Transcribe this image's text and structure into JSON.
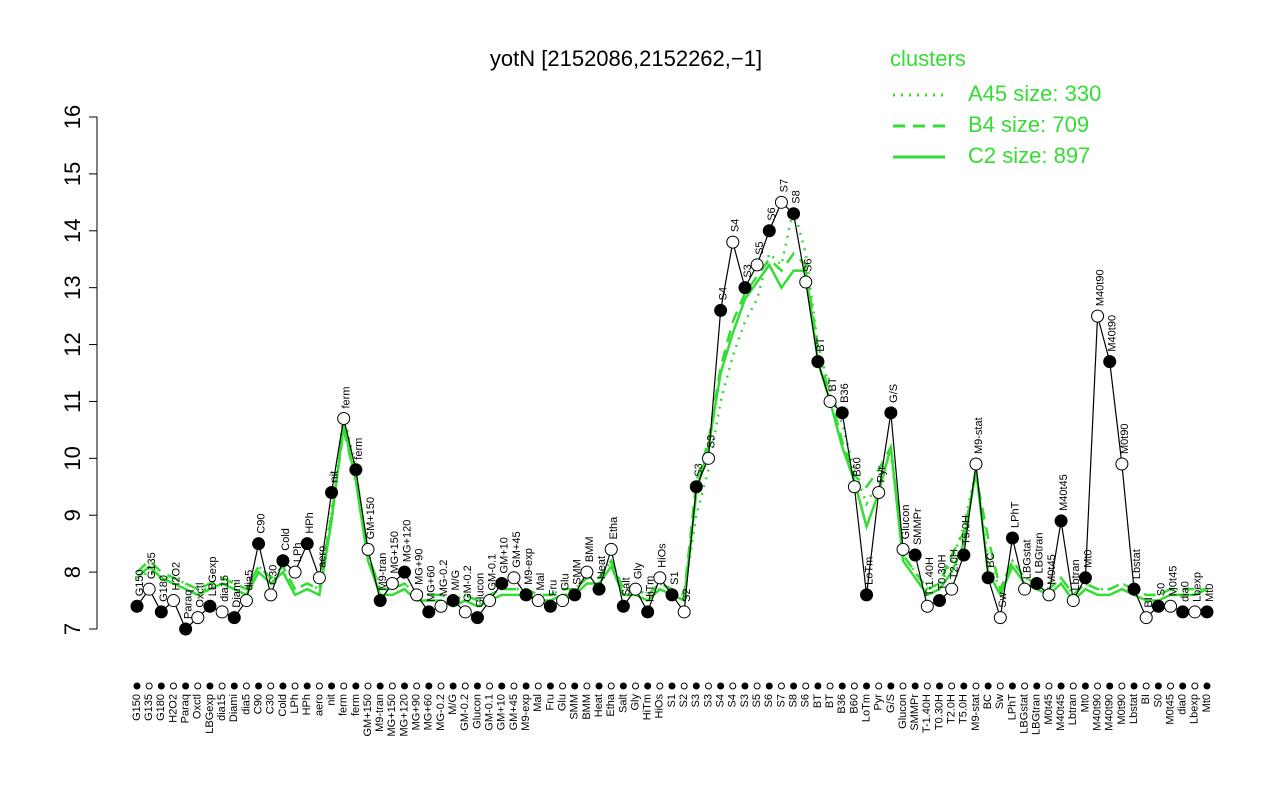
{
  "chart_data": {
    "type": "line",
    "title": "yotN [2152086,2152262,−1]",
    "legend_title": "clusters",
    "legend": "top-right",
    "categories": [
      "G150",
      "G135",
      "G180",
      "H2O2",
      "Paraq",
      "Oxctl",
      "LBGexp",
      "dia15",
      "Diami",
      "dia5",
      "C90",
      "C30",
      "Cold",
      "LPh",
      "HPh",
      "aero",
      "nit",
      "ferm",
      "ferm",
      "GM+150",
      "M9-tran",
      "MG+150",
      "MG+120",
      "MG+90",
      "MG+60",
      "MG-0.2",
      "M/G",
      "GM-0.2",
      "Glucon",
      "GM-0.1",
      "GM+10",
      "GM+45",
      "M9-exp",
      "Mal",
      "Fru",
      "Glu",
      "SMM",
      "BMM",
      "Heat",
      "Etha",
      "Salt",
      "Gly",
      "HiTm",
      "HiOs",
      "S1",
      "S2",
      "S3",
      "S3",
      "S4",
      "S4",
      "S3",
      "S5",
      "S6",
      "S7",
      "S8",
      "S6",
      "BT",
      "BT",
      "B36",
      "B60",
      "LoTm",
      "Pyr",
      "G/S",
      "Glucon",
      "SMMPr",
      "T-1.40H",
      "T0.30H",
      "T2.0H",
      "T5.0H",
      "M9-stat",
      "BC",
      "Sw",
      "LPhT",
      "LBGstat",
      "LBGtran",
      "M0t45",
      "M40t45",
      "Lbtran",
      "Mt0",
      "M40t90",
      "M40t90",
      "M0t90",
      "Lbstat",
      "BI",
      "S0",
      "M0t45",
      "dia0",
      "Lbexp",
      "Mt0"
    ],
    "values": [
      7.4,
      7.7,
      7.3,
      7.5,
      7.0,
      7.2,
      7.4,
      7.3,
      7.2,
      7.5,
      8.5,
      7.6,
      8.2,
      8.0,
      8.5,
      7.9,
      9.4,
      10.7,
      9.8,
      8.4,
      7.5,
      7.8,
      8.0,
      7.6,
      7.3,
      7.4,
      7.5,
      7.3,
      7.2,
      7.5,
      7.8,
      7.9,
      7.6,
      7.5,
      7.4,
      7.5,
      7.6,
      8.0,
      7.7,
      8.4,
      7.4,
      7.7,
      7.3,
      7.9,
      7.6,
      7.3,
      9.5,
      10.0,
      12.6,
      13.8,
      13.0,
      13.4,
      14.0,
      14.5,
      14.3,
      13.1,
      11.7,
      11.0,
      10.8,
      9.5,
      7.6,
      9.4,
      10.8,
      8.4,
      8.3,
      7.4,
      7.5,
      7.7,
      8.3,
      9.9,
      7.9,
      7.2,
      8.6,
      7.7,
      7.8,
      7.6,
      8.9,
      7.5,
      7.9,
      12.5,
      11.7,
      9.9,
      7.7,
      7.2,
      7.4,
      7.4,
      7.3,
      7.3,
      7.3
    ],
    "color": "#000000",
    "series": [
      {
        "name": "A45 size: 330",
        "color": "#33dd33",
        "dash": "dotted",
        "values": [
          7.9,
          8.0,
          7.9,
          7.9,
          7.8,
          7.7,
          7.7,
          7.8,
          7.8,
          7.7,
          8.1,
          7.9,
          8.0,
          7.7,
          7.8,
          7.7,
          9.1,
          10.8,
          9.8,
          8.3,
          7.7,
          7.7,
          7.8,
          7.6,
          7.6,
          7.6,
          7.5,
          7.6,
          7.5,
          7.6,
          7.7,
          7.7,
          7.7,
          7.6,
          7.6,
          7.7,
          7.7,
          7.9,
          7.9,
          8.2,
          7.7,
          7.7,
          7.6,
          7.8,
          7.7,
          7.6,
          9.0,
          9.8,
          11.0,
          11.8,
          12.4,
          12.8,
          13.6,
          13.4,
          14.4,
          13.6,
          12.0,
          11.2,
          10.6,
          9.8,
          9.2,
          9.6,
          10.1,
          8.3,
          8.0,
          7.7,
          7.8,
          8.2,
          8.8,
          9.8,
          8.2,
          7.7,
          8.2,
          7.9,
          7.8,
          7.7,
          7.9,
          7.6,
          7.8,
          7.7,
          7.7,
          7.8,
          7.7,
          7.6,
          7.6,
          7.7,
          7.7,
          7.7,
          7.7
        ]
      },
      {
        "name": "B4 size: 709",
        "color": "#33dd33",
        "dash": "dashed",
        "values": [
          8.0,
          8.2,
          8.0,
          7.9,
          7.8,
          7.7,
          7.8,
          7.9,
          7.8,
          7.7,
          8.1,
          7.9,
          8.1,
          7.7,
          7.8,
          7.7,
          9.0,
          10.5,
          9.6,
          8.3,
          7.7,
          7.7,
          7.8,
          7.6,
          7.6,
          7.6,
          7.5,
          7.6,
          7.5,
          7.6,
          7.7,
          7.7,
          7.7,
          7.6,
          7.6,
          7.7,
          7.7,
          7.9,
          7.9,
          8.2,
          7.7,
          7.7,
          7.6,
          7.8,
          7.7,
          7.6,
          9.6,
          10.3,
          11.6,
          12.4,
          12.9,
          13.2,
          13.5,
          13.3,
          13.6,
          13.4,
          11.9,
          11.1,
          10.3,
          9.7,
          9.5,
          9.8,
          10.2,
          8.3,
          8.0,
          7.7,
          7.8,
          8.3,
          8.7,
          9.7,
          8.6,
          7.7,
          8.2,
          7.9,
          7.8,
          7.7,
          7.9,
          7.6,
          7.8,
          7.7,
          7.7,
          7.8,
          7.7,
          7.6,
          7.6,
          7.7,
          7.7,
          7.7,
          7.7
        ]
      },
      {
        "name": "C2 size: 897",
        "color": "#33dd33",
        "dash": "solid",
        "values": [
          7.9,
          8.1,
          7.9,
          7.8,
          7.7,
          7.6,
          7.7,
          7.8,
          7.7,
          7.6,
          8.0,
          7.8,
          8.0,
          7.6,
          7.7,
          7.6,
          8.9,
          10.6,
          9.6,
          8.2,
          7.6,
          7.6,
          7.7,
          7.5,
          7.5,
          7.5,
          7.4,
          7.5,
          7.4,
          7.5,
          7.6,
          7.6,
          7.6,
          7.5,
          7.5,
          7.6,
          7.6,
          7.8,
          7.8,
          8.1,
          7.6,
          7.6,
          7.5,
          7.7,
          7.6,
          7.5,
          9.4,
          10.2,
          11.5,
          12.2,
          12.8,
          13.1,
          13.4,
          13.0,
          13.3,
          13.3,
          11.7,
          11.0,
          10.2,
          9.6,
          8.8,
          9.4,
          10.2,
          8.2,
          7.9,
          7.6,
          7.7,
          8.0,
          8.5,
          9.8,
          8.0,
          7.6,
          8.1,
          7.8,
          7.7,
          7.6,
          7.8,
          7.5,
          7.7,
          7.6,
          7.6,
          7.7,
          7.6,
          7.5,
          7.5,
          7.6,
          7.6,
          7.6,
          7.7
        ]
      }
    ],
    "ylim": [
      7,
      16
    ],
    "yticks": [
      7,
      8,
      9,
      10,
      11,
      12,
      13,
      14,
      15,
      16
    ]
  }
}
